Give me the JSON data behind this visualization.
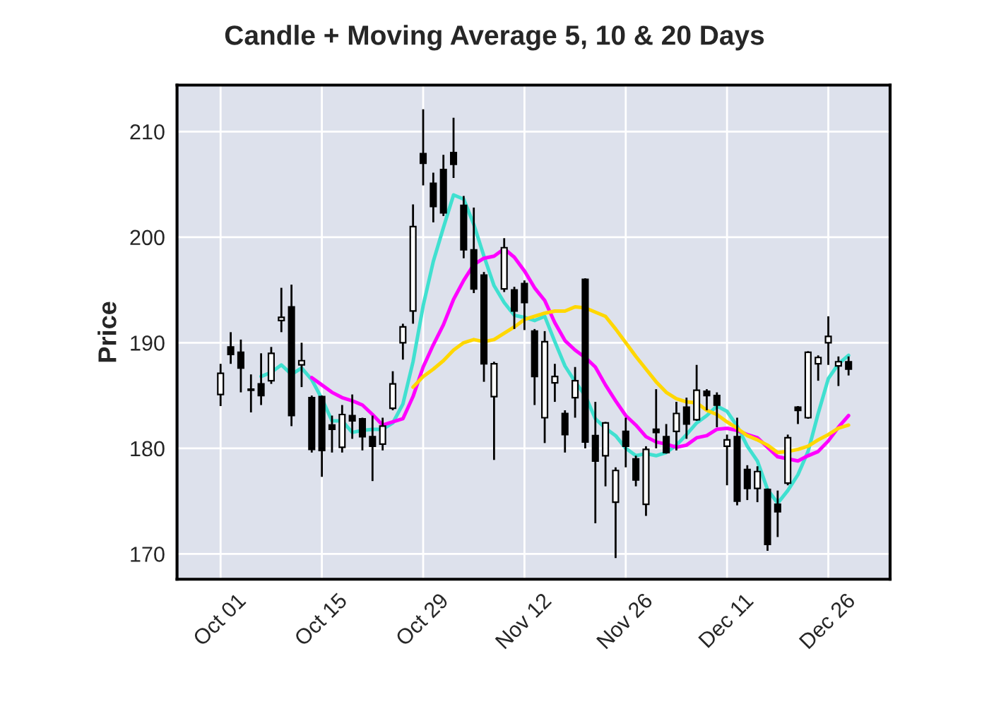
{
  "chart_data": {
    "type": "candlestick",
    "title": "Candle + Moving Average 5, 10 & 20 Days",
    "ylabel": "Price",
    "categories": [
      "Oct 01",
      null,
      null,
      null,
      null,
      null,
      null,
      null,
      null,
      null,
      "Oct 15",
      null,
      null,
      null,
      null,
      null,
      null,
      null,
      null,
      null,
      "Oct 29",
      null,
      null,
      null,
      null,
      null,
      null,
      null,
      null,
      null,
      "Nov 12",
      null,
      null,
      null,
      null,
      null,
      null,
      null,
      null,
      null,
      "Nov 26",
      null,
      null,
      null,
      null,
      null,
      null,
      null,
      null,
      null,
      "Dec 11",
      null,
      null,
      null,
      null,
      null,
      null,
      null,
      null,
      null,
      "Dec 26",
      null,
      null
    ],
    "ohlc": [
      [
        185.1,
        188.0,
        184.0,
        187.1
      ],
      [
        189.6,
        191.0,
        188.0,
        188.9
      ],
      [
        189.1,
        190.3,
        185.3,
        187.6
      ],
      [
        185.5,
        187.0,
        183.4,
        185.6
      ],
      [
        186.1,
        189.0,
        184.1,
        185.0
      ],
      [
        186.4,
        189.6,
        186.1,
        189.0
      ],
      [
        192.1,
        195.2,
        191.0,
        192.4
      ],
      [
        193.4,
        195.5,
        182.1,
        183.1
      ],
      [
        187.9,
        190.0,
        185.8,
        188.3
      ],
      [
        184.8,
        185.0,
        179.6,
        179.9
      ],
      [
        184.9,
        185.0,
        177.3,
        179.8
      ],
      [
        182.2,
        183.1,
        179.6,
        181.8
      ],
      [
        180.1,
        184.1,
        179.6,
        183.2
      ],
      [
        183.1,
        185.1,
        180.9,
        182.6
      ],
      [
        182.8,
        182.9,
        179.8,
        181.1
      ],
      [
        181.1,
        183.1,
        176.9,
        180.2
      ],
      [
        180.4,
        182.9,
        179.8,
        182.1
      ],
      [
        183.8,
        187.3,
        183.6,
        186.1
      ],
      [
        190.0,
        191.8,
        188.4,
        191.5
      ],
      [
        193.0,
        203.1,
        191.8,
        201.0
      ],
      [
        207.9,
        212.1,
        204.9,
        207.0
      ],
      [
        205.1,
        206.1,
        201.4,
        202.9
      ],
      [
        206.4,
        207.8,
        202.0,
        202.3
      ],
      [
        208.0,
        211.3,
        205.6,
        206.9
      ],
      [
        203.0,
        203.9,
        198.0,
        198.8
      ],
      [
        198.8,
        202.8,
        194.7,
        195.1
      ],
      [
        196.4,
        196.7,
        186.3,
        188.0
      ],
      [
        184.9,
        188.2,
        178.9,
        188.0
      ],
      [
        195.1,
        199.9,
        194.8,
        199.0
      ],
      [
        195.0,
        195.3,
        191.3,
        193.0
      ],
      [
        195.6,
        195.9,
        191.2,
        193.8
      ],
      [
        191.1,
        191.3,
        184.1,
        186.8
      ],
      [
        182.9,
        191.1,
        180.5,
        190.1
      ],
      [
        186.2,
        188.0,
        184.4,
        186.8
      ],
      [
        183.3,
        183.6,
        179.6,
        181.3
      ],
      [
        184.8,
        187.7,
        182.9,
        186.4
      ],
      [
        196.0,
        196.1,
        180.0,
        180.6
      ],
      [
        181.2,
        184.4,
        172.9,
        178.8
      ],
      [
        179.3,
        182.5,
        176.4,
        182.4
      ],
      [
        174.9,
        178.2,
        169.6,
        177.9
      ],
      [
        181.6,
        182.9,
        178.2,
        180.2
      ],
      [
        179.0,
        179.3,
        176.4,
        177.0
      ],
      [
        174.7,
        180.2,
        173.6,
        179.9
      ],
      [
        181.8,
        185.6,
        180.0,
        181.5
      ],
      [
        181.1,
        182.3,
        179.5,
        179.6
      ],
      [
        181.6,
        184.4,
        179.8,
        183.3
      ],
      [
        183.9,
        184.8,
        180.9,
        182.3
      ],
      [
        182.7,
        187.9,
        182.6,
        185.5
      ],
      [
        185.4,
        185.6,
        183.6,
        185.0
      ],
      [
        185.0,
        185.3,
        182.0,
        184.1
      ],
      [
        180.2,
        181.3,
        176.5,
        180.8
      ],
      [
        181.1,
        182.9,
        174.6,
        175.0
      ],
      [
        178.0,
        178.4,
        175.1,
        176.2
      ],
      [
        176.2,
        178.3,
        174.9,
        177.8
      ],
      [
        176.1,
        176.2,
        170.3,
        170.9
      ],
      [
        174.7,
        176.0,
        171.6,
        174.0
      ],
      [
        176.7,
        181.3,
        176.5,
        181.0
      ],
      [
        183.9,
        184.0,
        182.3,
        183.6
      ],
      [
        182.9,
        189.2,
        182.8,
        189.1
      ],
      [
        188.0,
        188.8,
        186.4,
        188.6
      ],
      [
        190.0,
        192.5,
        187.9,
        190.6
      ],
      [
        187.8,
        188.7,
        185.9,
        188.2
      ],
      [
        188.2,
        188.7,
        186.9,
        187.5
      ]
    ],
    "series": [
      {
        "type": "line",
        "color": "#40e0d0",
        "values": [
          null,
          null,
          null,
          null,
          186.8,
          187.2,
          187.9,
          187.0,
          187.6,
          186.5,
          184.7,
          182.6,
          182.6,
          181.5,
          181.7,
          181.8,
          181.8,
          182.4,
          184.2,
          188.2,
          193.5,
          197.7,
          200.9,
          204.0,
          203.6,
          201.2,
          198.2,
          195.4,
          193.8,
          192.6,
          192.4,
          192.1,
          192.5,
          190.1,
          187.8,
          186.3,
          185.0,
          182.8,
          181.9,
          181.2,
          180.0,
          179.3,
          179.5,
          179.3,
          179.6,
          180.3,
          181.3,
          182.4,
          183.1,
          184.0,
          183.5,
          182.1,
          180.2,
          178.8,
          176.1,
          174.8,
          176.0,
          177.5,
          179.7,
          183.3,
          186.6,
          188.0,
          188.8
        ]
      },
      {
        "type": "line",
        "color": "#ff00ff",
        "values": [
          null,
          null,
          null,
          null,
          null,
          null,
          null,
          null,
          null,
          186.7,
          186.0,
          185.3,
          184.8,
          184.5,
          184.1,
          183.2,
          182.2,
          182.5,
          182.8,
          184.9,
          187.7,
          189.8,
          191.7,
          194.1,
          195.9,
          197.4,
          198.0,
          198.2,
          198.9,
          198.1,
          196.8,
          195.2,
          194.0,
          191.9,
          190.2,
          189.3,
          188.6,
          187.7,
          186.0,
          184.5,
          183.1,
          182.2,
          181.1,
          180.6,
          180.4,
          180.1,
          180.3,
          181.0,
          181.2,
          181.8,
          181.9,
          181.7,
          181.3,
          181.0,
          180.1,
          179.2,
          179.0,
          178.8,
          179.3,
          179.7,
          180.7,
          182.0,
          183.1
        ]
      },
      {
        "type": "line",
        "color": "#ffd700",
        "values": [
          null,
          null,
          null,
          null,
          null,
          null,
          null,
          null,
          null,
          null,
          null,
          null,
          null,
          null,
          null,
          null,
          null,
          null,
          null,
          185.8,
          186.8,
          187.5,
          188.3,
          189.3,
          190.0,
          190.3,
          190.1,
          190.3,
          190.9,
          191.5,
          192.2,
          192.5,
          192.8,
          193.0,
          193.0,
          193.4,
          193.3,
          192.9,
          192.5,
          191.3,
          190.0,
          188.7,
          187.5,
          186.3,
          185.3,
          184.7,
          184.4,
          184.3,
          183.6,
          183.2,
          182.5,
          181.9,
          181.2,
          180.8,
          180.3,
          179.6,
          179.7,
          179.9,
          180.2,
          180.8,
          181.3,
          181.9,
          182.2
        ]
      }
    ],
    "ylim": [
      167.6,
      214.4
    ],
    "yticks": [
      170,
      180,
      190,
      200,
      210
    ],
    "grid": true
  }
}
